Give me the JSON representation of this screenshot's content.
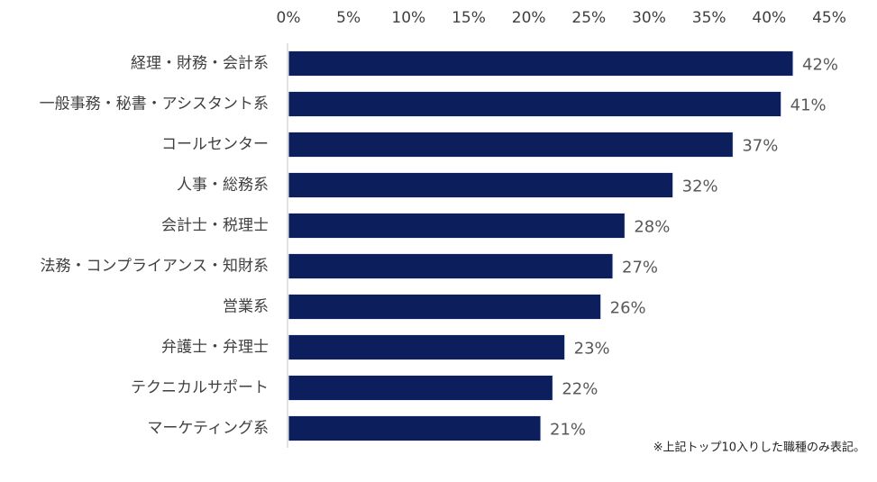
{
  "chart_data": {
    "type": "bar",
    "orientation": "horizontal",
    "categories": [
      "経理・財務・会計系",
      "一般事務・秘書・アシスタント系",
      "コールセンター",
      "人事・総務系",
      "会計士・税理士",
      "法務・コンプライアンス・知財系",
      "営業系",
      "弁護士・弁理士",
      "テクニカルサポート",
      "マーケティング系"
    ],
    "values": [
      42,
      41,
      37,
      32,
      28,
      27,
      26,
      23,
      22,
      21
    ],
    "value_labels": [
      "42%",
      "41%",
      "37%",
      "32%",
      "28%",
      "27%",
      "26%",
      "23%",
      "22%",
      "21%"
    ],
    "color": "#0c1e5b",
    "xlim": [
      0,
      45
    ],
    "xticks": [
      {
        "value": 0,
        "label": "0%"
      },
      {
        "value": 5,
        "label": "5%"
      },
      {
        "value": 10,
        "label": "10%"
      },
      {
        "value": 15,
        "label": "15%"
      },
      {
        "value": 20,
        "label": "20%"
      },
      {
        "value": 25,
        "label": "25%"
      },
      {
        "value": 30,
        "label": "30%"
      },
      {
        "value": 35,
        "label": "35%"
      },
      {
        "value": 40,
        "label": "40%"
      },
      {
        "value": 45,
        "label": "45%"
      }
    ],
    "note": "※上記トップ10入りした職種のみ表記。"
  }
}
